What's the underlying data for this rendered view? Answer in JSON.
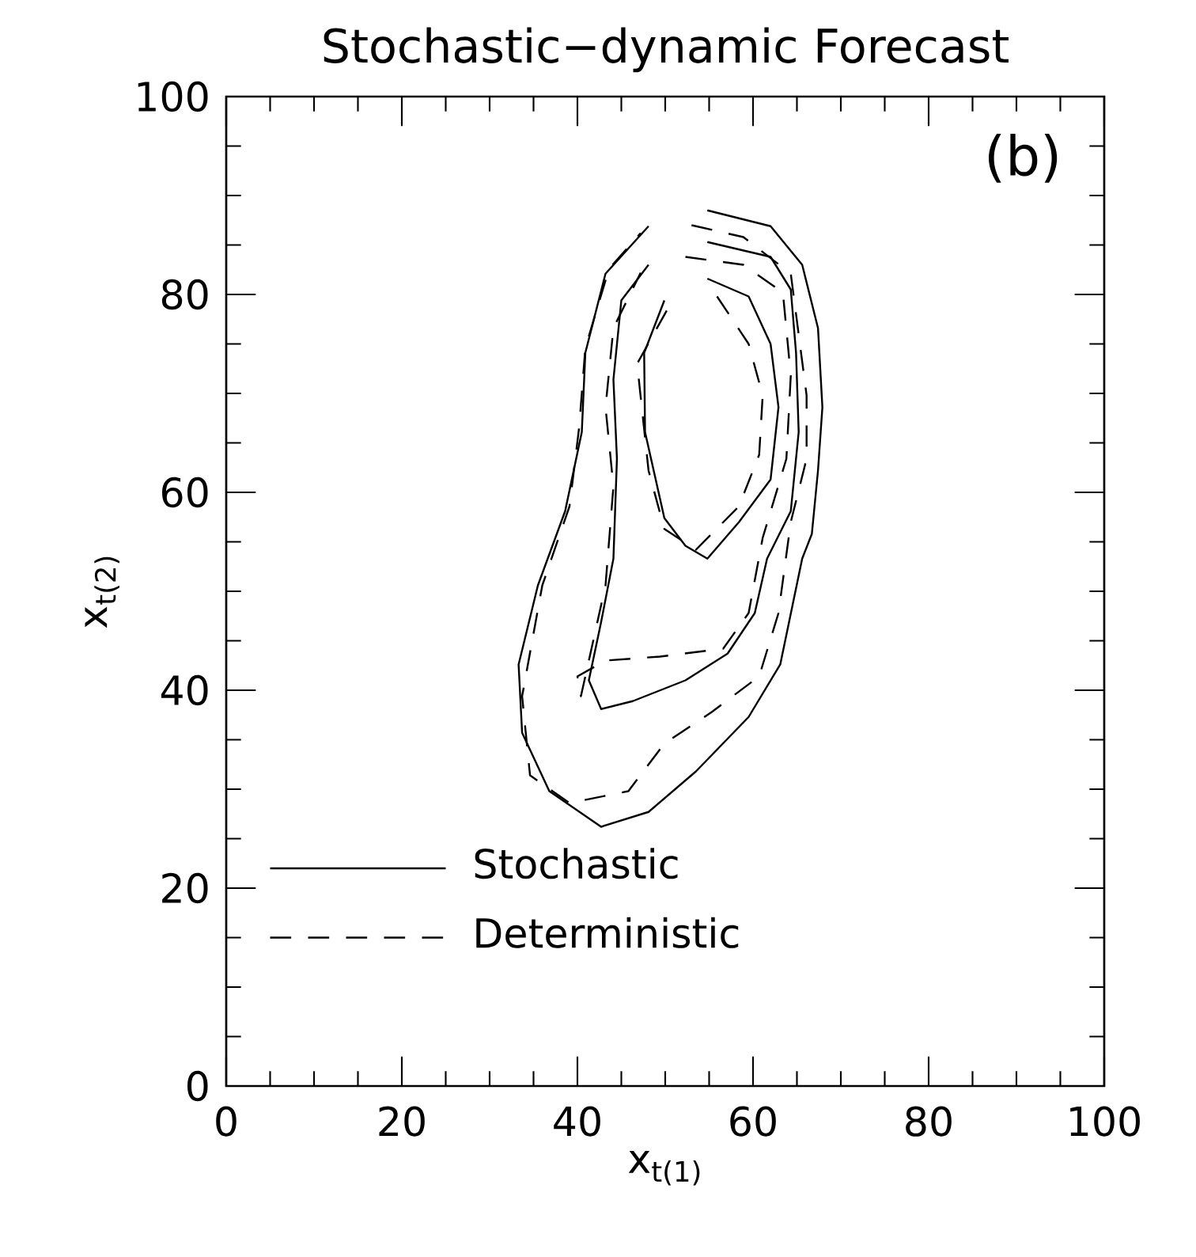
{
  "chart_data": {
    "type": "line",
    "title": "Stochastic−dynamic Forecast",
    "xlabel": "x$_{t(1)}$",
    "ylabel": "x$_{t(2)}$",
    "xlim": [
      0,
      100
    ],
    "ylim": [
      0,
      100
    ],
    "xticks": [
      0,
      20,
      40,
      60,
      80,
      100
    ],
    "yticks": [
      0,
      20,
      40,
      60,
      80,
      100
    ],
    "legend": "bottom left",
    "marker": "none",
    "annotations": [
      "(b)"
    ],
    "series": [
      {
        "name": "Stochastic",
        "color": "#000000",
        "line_style": "solid",
        "x": [
          54.8,
          62.0,
          65.6,
          67.4,
          67.9,
          67.4,
          66.7,
          65.6,
          63.1,
          59.5,
          53.5,
          48.1,
          42.7,
          36.8,
          33.7,
          33.3,
          35.5,
          38.6,
          40.5,
          40.9,
          43.2,
          48.1
        ],
        "values": [
          88.5,
          86.9,
          83.0,
          76.6,
          68.6,
          62.2,
          55.8,
          53.3,
          42.6,
          37.3,
          31.8,
          27.7,
          26.2,
          29.8,
          35.7,
          42.6,
          50.6,
          58.1,
          66.1,
          74.1,
          82.1,
          86.9
        ]
      },
      {
        "color": "#000000",
        "line_style": "solid",
        "x": [
          54.8,
          62.0,
          64.3,
          64.9,
          65.2,
          64.3,
          61.6,
          60.2,
          57.1,
          52.3,
          46.3,
          42.7,
          41.3,
          42.7,
          44.1,
          44.5,
          44.1,
          45.0,
          48.1
        ],
        "values": [
          85.3,
          83.8,
          80.5,
          74.1,
          66.1,
          58.1,
          53.3,
          47.8,
          43.7,
          41.0,
          38.9,
          38.1,
          41.0,
          46.9,
          53.3,
          63.4,
          71.4,
          79.4,
          83.0
        ]
      },
      {
        "color": "#000000",
        "line_style": "solid",
        "x": [
          54.8,
          59.5,
          62.0,
          62.9,
          62.0,
          58.4,
          54.8,
          52.3,
          49.9,
          47.7,
          47.6,
          49.9
        ],
        "values": [
          81.6,
          79.8,
          75.0,
          68.6,
          61.3,
          57.0,
          53.3,
          54.6,
          57.4,
          66.1,
          74.1,
          79.4
        ]
      },
      {
        "name": "Deterministic",
        "color": "#000000",
        "line_style": "dashed",
        "x": [
          53.0,
          58.9,
          64.3,
          66.1,
          66.1,
          64.3,
          62.9,
          60.7,
          55.3,
          49.9,
          45.8,
          39.1,
          34.6,
          33.7,
          36.0,
          39.1,
          40.2,
          40.9,
          43.6,
          47.2
        ],
        "values": [
          87.0,
          85.8,
          82.1,
          69.8,
          63.4,
          57.0,
          47.8,
          41.4,
          37.8,
          34.6,
          29.8,
          28.6,
          31.4,
          39.4,
          50.6,
          58.6,
          66.6,
          74.6,
          82.6,
          86.2
        ]
      },
      {
        "color": "#000000",
        "line_style": "dashed",
        "x": [
          52.3,
          58.9,
          63.4,
          64.3,
          63.8,
          61.1,
          59.5,
          56.6,
          49.4,
          43.2,
          40.0,
          40.4,
          43.2,
          44.1,
          43.2,
          44.1,
          47.2
        ],
        "values": [
          83.8,
          83.0,
          80.2,
          71.8,
          63.4,
          55.4,
          47.8,
          44.2,
          43.4,
          43.0,
          41.4,
          39.4,
          50.6,
          60.6,
          68.6,
          76.6,
          82.2
        ]
      },
      {
        "color": "#000000",
        "line_style": "dashed",
        "x": [
          55.9,
          59.5,
          61.1,
          60.7,
          58.4,
          53.5,
          49.9,
          48.1,
          46.8,
          50.5
        ],
        "values": [
          79.8,
          75.0,
          69.8,
          63.8,
          58.6,
          54.2,
          56.3,
          62.2,
          73.0,
          78.9
        ]
      }
    ]
  }
}
